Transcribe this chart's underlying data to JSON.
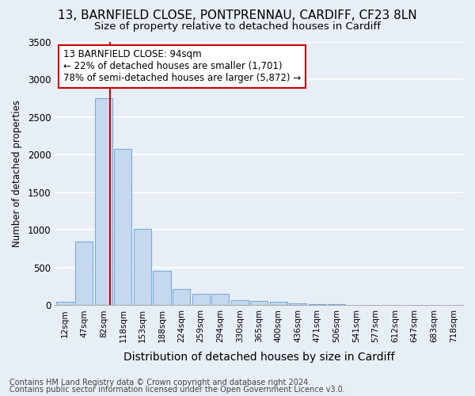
{
  "title1": "13, BARNFIELD CLOSE, PONTPRENNAU, CARDIFF, CF23 8LN",
  "title2": "Size of property relative to detached houses in Cardiff",
  "xlabel": "Distribution of detached houses by size in Cardiff",
  "ylabel": "Number of detached properties",
  "categories": [
    "12sqm",
    "47sqm",
    "82sqm",
    "118sqm",
    "153sqm",
    "188sqm",
    "224sqm",
    "259sqm",
    "294sqm",
    "330sqm",
    "365sqm",
    "400sqm",
    "436sqm",
    "471sqm",
    "506sqm",
    "541sqm",
    "577sqm",
    "612sqm",
    "647sqm",
    "683sqm",
    "718sqm"
  ],
  "values": [
    50,
    850,
    2750,
    2075,
    1010,
    460,
    215,
    155,
    150,
    70,
    55,
    50,
    25,
    15,
    10,
    6,
    4,
    3,
    2,
    1,
    1
  ],
  "bar_color": "#c5d8f0",
  "bar_edgecolor": "#7aacd6",
  "bar_linewidth": 0.8,
  "ylim": [
    0,
    3500
  ],
  "yticks": [
    0,
    500,
    1000,
    1500,
    2000,
    2500,
    3000,
    3500
  ],
  "vline_color": "#cc0000",
  "vline_linewidth": 1.5,
  "vline_pos": 2.33,
  "annotation_box_text": "13 BARNFIELD CLOSE: 94sqm\n← 22% of detached houses are smaller (1,701)\n78% of semi-detached houses are larger (5,872) →",
  "annotation_fontsize": 8.5,
  "bg_color": "#e8eef6",
  "grid_color": "#ffffff",
  "footer1": "Contains HM Land Registry data © Crown copyright and database right 2024.",
  "footer2": "Contains public sector information licensed under the Open Government Licence v3.0.",
  "title1_fontsize": 11,
  "title2_fontsize": 9.5,
  "xlabel_fontsize": 10,
  "ylabel_fontsize": 8.5,
  "footer_fontsize": 7
}
